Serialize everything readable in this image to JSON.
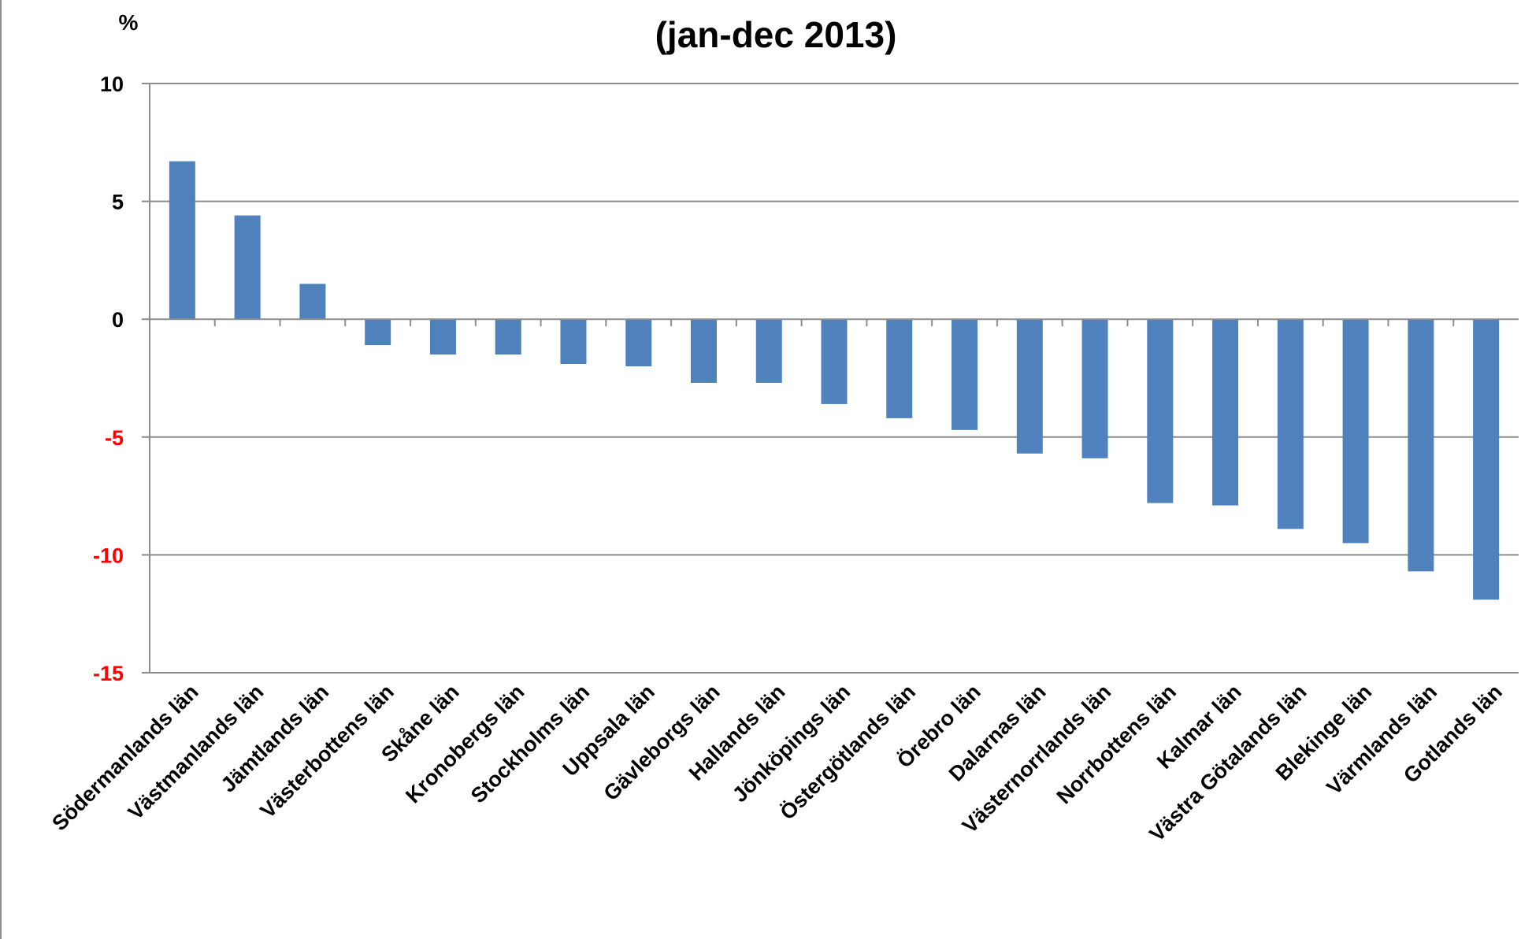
{
  "chart_data": {
    "type": "bar",
    "title_partial": "(jan-dec 2013)",
    "unit_label": "%",
    "ylim": [
      -15,
      10
    ],
    "yticks": [
      {
        "value": 10,
        "label": "10",
        "color": "#000000"
      },
      {
        "value": 5,
        "label": "5",
        "color": "#000000"
      },
      {
        "value": 0,
        "label": "0",
        "color": "#000000"
      },
      {
        "value": -5,
        "label": "-5",
        "color": "#ff0000"
      },
      {
        "value": -10,
        "label": "-10",
        "color": "#ff0000"
      },
      {
        "value": -15,
        "label": "-15",
        "color": "#ff0000"
      }
    ],
    "grid": true,
    "bar_color": "#4f81bd",
    "categories": [
      "Södermanlands län",
      "Västmanlands län",
      "Jämtlands län",
      "Västerbottens län",
      "Skåne län",
      "Kronobergs län",
      "Stockholms län",
      "Uppsala län",
      "Gävleborgs län",
      "Hallands län",
      "Jönköpings län",
      "Östergötlands län",
      "Örebro län",
      "Dalarnas län",
      "Västernorrlands län",
      "Norrbottens län",
      "Kalmar län",
      "Västra Götalands län",
      "Blekinge län",
      "Värmlands län",
      "Gotlands län"
    ],
    "values": [
      6.7,
      4.4,
      1.5,
      -1.1,
      -1.5,
      -1.5,
      -1.9,
      -2.0,
      -2.7,
      -2.7,
      -3.6,
      -4.2,
      -4.7,
      -5.7,
      -5.9,
      -7.8,
      -7.9,
      -8.9,
      -9.5,
      -10.7,
      -11.9
    ]
  }
}
